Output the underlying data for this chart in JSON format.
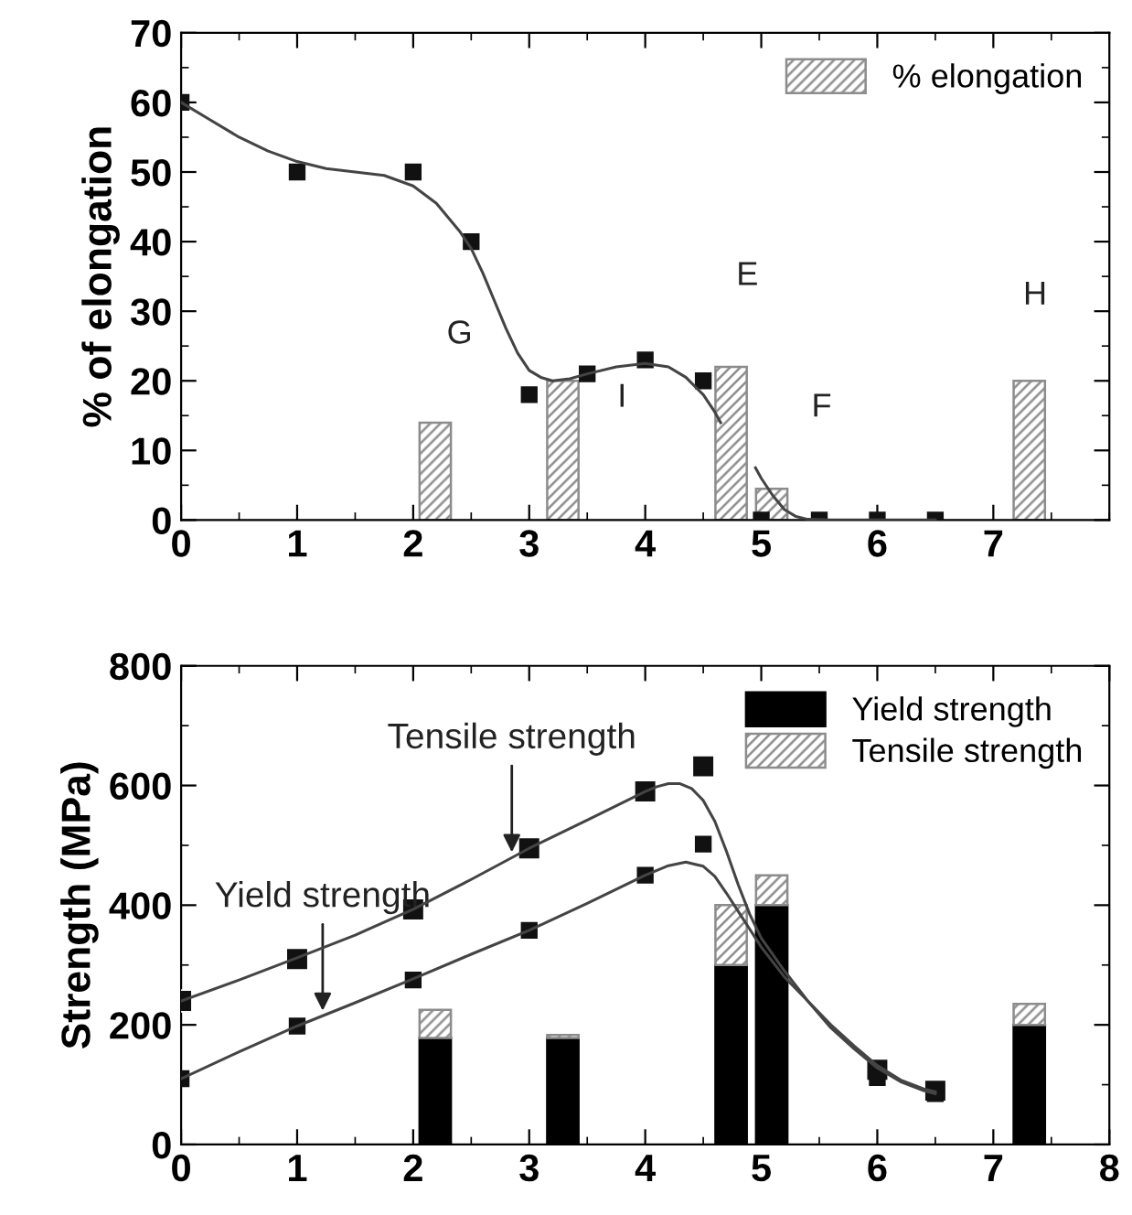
{
  "chart_data": [
    {
      "type": "bar",
      "ylabel": "% of elongation",
      "xlim": [
        0,
        8
      ],
      "xticks": [
        0,
        1,
        2,
        3,
        4,
        5,
        6,
        7
      ],
      "ylim": [
        0,
        70
      ],
      "yticks": [
        0,
        10,
        20,
        30,
        40,
        50,
        60,
        70
      ],
      "legend": "top right",
      "grid": false,
      "series": [
        {
          "name": "% elongation",
          "color": "#8c8c8c",
          "x": [
            2.19,
            3.29,
            4.74,
            5.09,
            7.31
          ],
          "values": [
            14,
            20,
            22,
            4.5,
            20
          ]
        },
        {
          "type": "scatter",
          "marker": "square",
          "color": "#111111",
          "x": [
            0,
            1,
            2,
            2.5,
            3,
            3.5,
            4,
            4.5,
            5,
            5.5,
            6,
            6.5
          ],
          "values": [
            60,
            50,
            50,
            40,
            18,
            21,
            23,
            20,
            0,
            0,
            0,
            0
          ]
        },
        {
          "type": "line",
          "color": "#444444",
          "x": [
            0,
            0.25,
            0.5,
            0.75,
            1,
            1.25,
            1.5,
            1.75,
            2,
            2.2,
            2.4,
            2.5,
            2.6,
            2.7,
            2.8,
            2.9,
            3.0,
            3.1,
            3.2,
            3.35,
            3.5,
            3.75,
            4,
            4.2,
            4.35,
            4.5,
            4.6,
            4.65
          ],
          "values": [
            60,
            57.5,
            55,
            53,
            51.5,
            50.5,
            50,
            49.5,
            48,
            45.5,
            41.5,
            39,
            35.5,
            31.5,
            27.5,
            24,
            21.5,
            20.5,
            20,
            20.3,
            21,
            22,
            22.5,
            22,
            20.5,
            18,
            15.5,
            14
          ]
        },
        {
          "type": "line",
          "color": "#444444",
          "x": [
            4.95,
            5.0,
            5.1,
            5.2,
            5.3,
            5.4,
            5.6,
            6,
            6.5
          ],
          "values": [
            7.5,
            6,
            3.5,
            1.5,
            0.5,
            0.1,
            0,
            0,
            0
          ]
        }
      ],
      "annotations": [
        "G",
        "I",
        "E",
        "F",
        "H"
      ]
    },
    {
      "type": "bar",
      "ylabel": "Strength (MPa)",
      "xlim": [
        0,
        8
      ],
      "xticks": [
        0,
        1,
        2,
        3,
        4,
        5,
        6,
        7,
        8
      ],
      "ylim": [
        0,
        800
      ],
      "yticks": [
        0,
        200,
        400,
        600,
        800
      ],
      "legend": "top right",
      "grid": false,
      "stacked": true,
      "series": [
        {
          "name": "Yield strength",
          "color": "#000000",
          "x": [
            2.19,
            3.29,
            4.74,
            5.09,
            7.31
          ],
          "values": [
            178,
            178,
            300,
            400,
            200
          ]
        },
        {
          "name": "Tensile strength",
          "color": "#8c8c8c",
          "x": [
            2.19,
            3.29,
            4.74,
            5.09,
            7.31
          ],
          "values": [
            47,
            5,
            100,
            50,
            35
          ]
        },
        {
          "type": "scatter",
          "marker": "square",
          "color": "#111111",
          "x": [
            0,
            1,
            2,
            3,
            4,
            4.5,
            6,
            6.5
          ],
          "values": [
            240,
            310,
            393,
            495,
            590,
            632,
            125,
            90
          ]
        },
        {
          "type": "scatter",
          "marker": "square",
          "color": "#111111",
          "x": [
            0,
            1,
            2,
            3,
            4,
            4.5,
            6,
            6.5
          ],
          "values": [
            110,
            198,
            275,
            358,
            450,
            502,
            112,
            85
          ]
        },
        {
          "type": "line",
          "color": "#444444",
          "x": [
            0,
            0.5,
            1,
            1.5,
            2,
            2.5,
            3,
            3.5,
            4,
            4.1,
            4.2,
            4.3,
            4.4,
            4.5,
            4.6,
            4.7,
            4.8,
            4.9,
            5.0,
            5.2,
            5.4,
            5.6,
            5.8,
            6,
            6.2,
            6.4,
            6.5
          ],
          "values": [
            240,
            275,
            312,
            350,
            393,
            443,
            495,
            542,
            590,
            598,
            603,
            603,
            595,
            575,
            540,
            490,
            435,
            385,
            345,
            290,
            240,
            195,
            160,
            128,
            105,
            90,
            85
          ]
        },
        {
          "type": "line",
          "color": "#444444",
          "x": [
            0,
            0.5,
            1,
            1.5,
            2,
            2.5,
            3,
            3.5,
            4,
            4.2,
            4.35,
            4.5,
            4.6,
            4.7,
            4.8,
            4.9,
            5.0,
            5.2,
            5.4,
            5.6,
            5.8,
            6,
            6.2,
            6.4,
            6.5
          ],
          "values": [
            110,
            155,
            198,
            237,
            277,
            318,
            358,
            403,
            450,
            466,
            472,
            465,
            448,
            420,
            390,
            360,
            330,
            280,
            240,
            200,
            165,
            132,
            108,
            93,
            88
          ]
        }
      ],
      "annotations": [
        {
          "text": "Tensile strength",
          "x": 2.85,
          "y": 480
        },
        {
          "text": "Yield strength",
          "x": 1.22,
          "y": 215
        }
      ]
    }
  ]
}
